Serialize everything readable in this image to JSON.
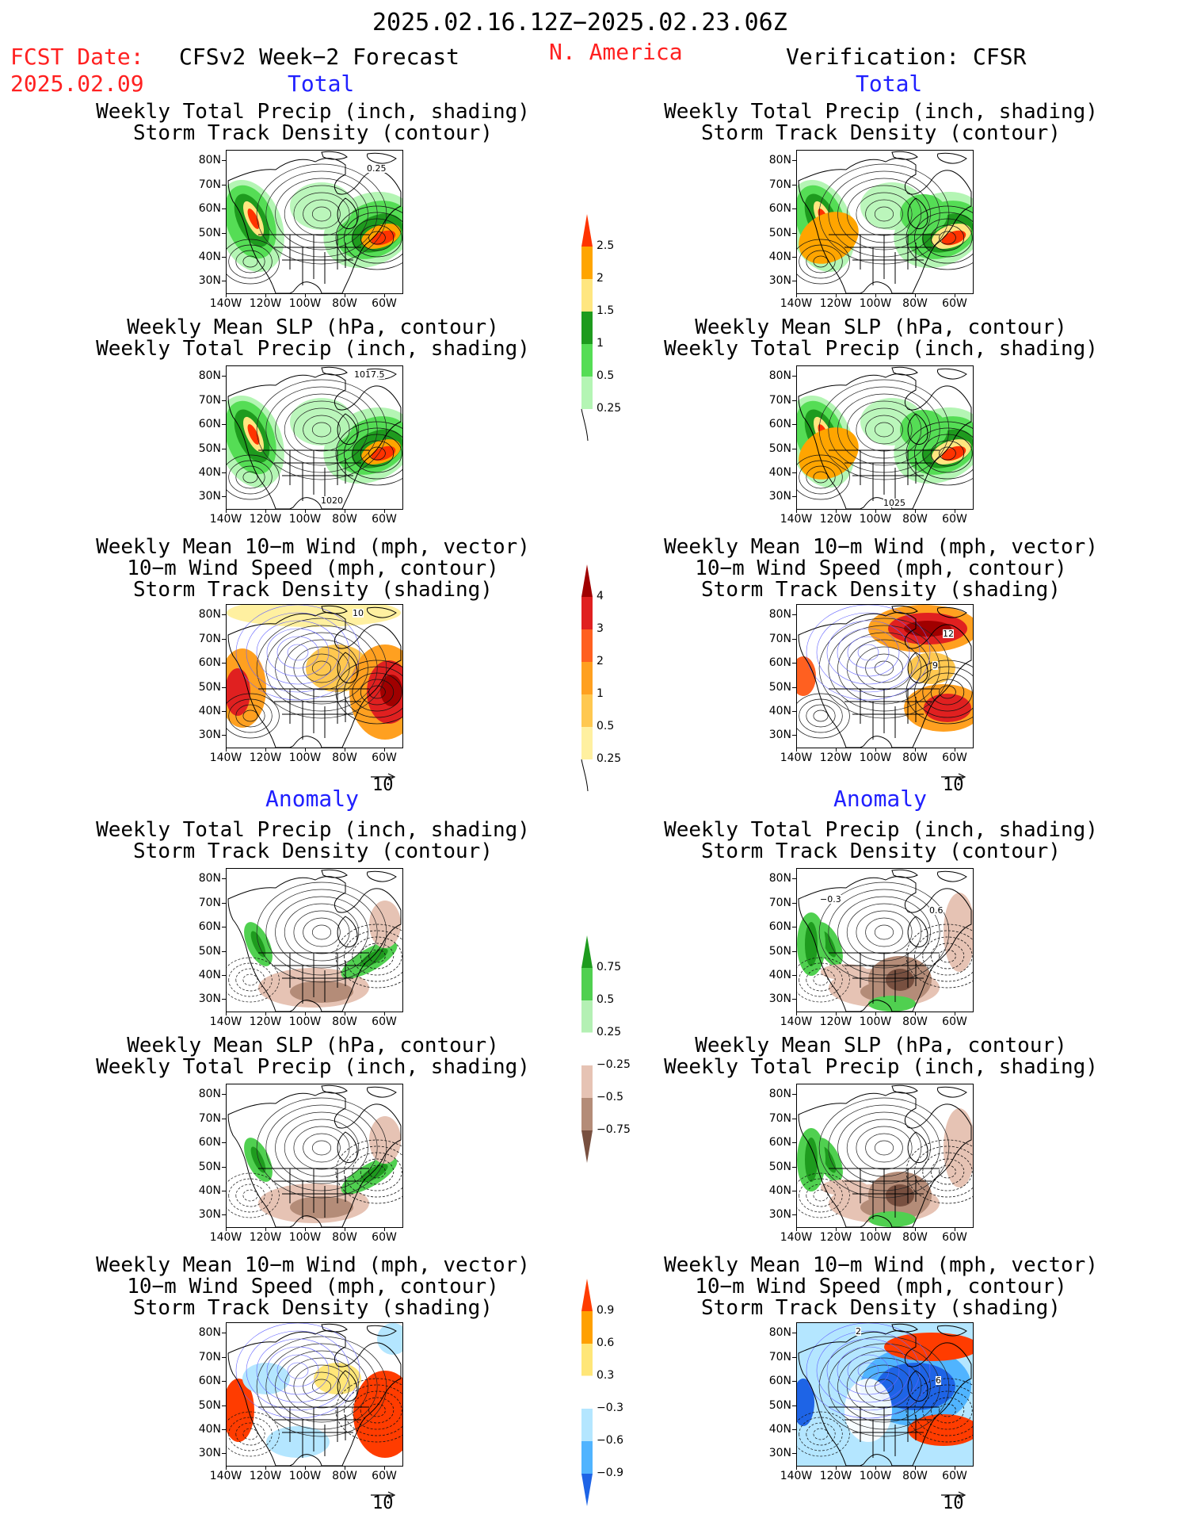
{
  "header": {
    "period": "2025.02.16.12Z−2025.02.23.06Z",
    "fcst_label": "FCST Date:",
    "fcst_date": "2025.02.09",
    "region": "N. America",
    "left_title": "CFSv2 Week−2 Forecast",
    "right_title": "Verification: CFSR",
    "total_label": "Total",
    "anomaly_label": "Anomaly"
  },
  "panel_titles": {
    "precip_storm": [
      "Weekly Total Precip (inch, shading)",
      "Storm Track Density (contour)"
    ],
    "slp_precip": [
      "Weekly Mean SLP (hPa, contour)",
      "Weekly Total Precip (inch, shading)"
    ],
    "wind_storm": [
      "Weekly Mean 10−m Wind (mph, vector)",
      "10−m Wind Speed (mph, contour)",
      "Storm Track Density (shading)"
    ]
  },
  "axes": {
    "lat_labels": [
      "80N",
      "70N",
      "60N",
      "50N",
      "40N",
      "30N"
    ],
    "lon_labels": [
      "140W",
      "120W",
      "100W",
      "80W",
      "60W"
    ]
  },
  "vector_ref": "10",
  "contour_labels": {
    "p1_left": "0.25",
    "p2_left_top": "1017.5",
    "p2_left_bottom": "1020",
    "p2_right_bottom": "1025",
    "p3_left": "10",
    "p3_right_a": "12",
    "p3_right_b": "9",
    "p4_right_a": "−0.3",
    "p4_right_b": "0.6",
    "p6_right_a": "2",
    "p6_right_b": "6"
  },
  "colorbars": {
    "precip_total": {
      "labels": [
        "2.5",
        "2",
        "1.5",
        "1",
        "0.5",
        "0.25"
      ],
      "colors": [
        "#ff3300",
        "#ffa500",
        "#ffe680",
        "#1e9b1e",
        "#55dd55",
        "#b4f5b4"
      ]
    },
    "storm_total": {
      "labels": [
        "4",
        "3",
        "2",
        "1",
        "0.5",
        "0.25"
      ],
      "colors": [
        "#a00000",
        "#e02020",
        "#ff6020",
        "#ffa020",
        "#ffc850",
        "#fff0a0"
      ]
    },
    "precip_anom": {
      "labels": [
        "0.75",
        "0.5",
        "0.25",
        "−0.25",
        "−0.5",
        "−0.75"
      ],
      "colors": [
        "#1e9b1e",
        "#50d050",
        "#b4f0b4",
        "#ffffff",
        "#e6c3b4",
        "#b48c78",
        "#785040"
      ]
    },
    "storm_anom": {
      "labels": [
        "0.9",
        "0.6",
        "0.3",
        "−0.3",
        "−0.6",
        "−0.9"
      ],
      "colors": [
        "#ff3c00",
        "#ffa000",
        "#ffe678",
        "#ffffff",
        "#b4e6ff",
        "#50b4ff",
        "#1e64e6"
      ]
    }
  }
}
